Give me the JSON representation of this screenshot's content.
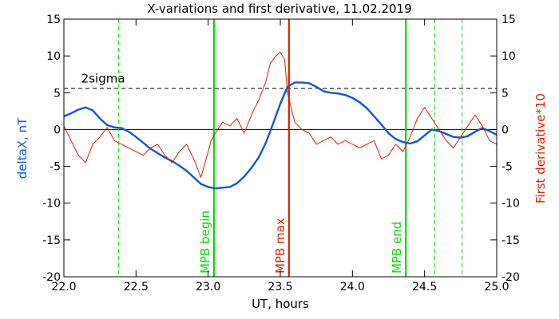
{
  "chart_data": {
    "type": "line",
    "title": "X-variations and first derivative, 11.02.2019",
    "xlabel": "UT, hours",
    "ylabel_left": "deltaX, nT",
    "ylabel_right": "First derivative*10",
    "xlim": [
      22.0,
      25.0
    ],
    "ylim": [
      -20,
      15
    ],
    "x_ticks": [
      "22.0",
      "22.5",
      "23.0",
      "23.5",
      "24.0",
      "24.5",
      "25.0"
    ],
    "y_ticks": [
      "15",
      "10",
      "5",
      "0",
      "-5",
      "-10",
      "-15",
      "-20"
    ],
    "grid": false,
    "zero_line": 0,
    "sigma": {
      "label": "2sigma",
      "value": 5.6
    },
    "events": [
      {
        "label": "MPB begin",
        "x": 23.04,
        "color": "#00dd00"
      },
      {
        "label": "MPB max",
        "x": 23.56,
        "color": "#dd2200"
      },
      {
        "label": "MPB end",
        "x": 24.37,
        "color": "#00dd00"
      }
    ],
    "dashed_markers": [
      {
        "x": 22.38,
        "color": "#00dd00"
      },
      {
        "x": 24.57,
        "color": "#00dd00"
      },
      {
        "x": 24.76,
        "color": "#00dd00"
      }
    ],
    "series": [
      {
        "color": "#1155dd",
        "x": [
          22.0,
          22.05,
          22.1,
          22.15,
          22.2,
          22.25,
          22.3,
          22.35,
          22.4,
          22.45,
          22.5,
          22.55,
          22.6,
          22.65,
          22.7,
          22.75,
          22.8,
          22.85,
          22.9,
          22.95,
          23.0,
          23.05,
          23.1,
          23.15,
          23.2,
          23.25,
          23.3,
          23.35,
          23.4,
          23.45,
          23.5,
          23.55,
          23.6,
          23.65,
          23.7,
          23.75,
          23.8,
          23.85,
          23.9,
          23.95,
          24.0,
          24.05,
          24.1,
          24.15,
          24.2,
          24.25,
          24.3,
          24.35,
          24.4,
          24.45,
          24.5,
          24.55,
          24.6,
          24.65,
          24.7,
          24.75,
          24.8,
          24.85,
          24.9,
          24.95,
          25.0
        ],
        "y": [
          1.8,
          2.2,
          2.7,
          3.0,
          2.6,
          1.5,
          0.6,
          0.3,
          0.2,
          -0.3,
          -1.0,
          -1.8,
          -2.6,
          -3.2,
          -3.8,
          -4.3,
          -4.9,
          -5.6,
          -6.5,
          -7.4,
          -7.8,
          -8.0,
          -7.9,
          -7.8,
          -7.3,
          -6.4,
          -5.2,
          -3.8,
          -1.8,
          0.8,
          3.5,
          5.8,
          6.4,
          6.4,
          6.3,
          5.8,
          5.2,
          5.0,
          4.9,
          4.7,
          4.3,
          3.7,
          2.9,
          1.8,
          0.7,
          -0.5,
          -1.3,
          -1.7,
          -1.9,
          -1.6,
          -0.8,
          0.0,
          -0.2,
          -0.6,
          -1.0,
          -1.1,
          -0.9,
          -0.3,
          0.2,
          -0.2,
          -0.7
        ]
      },
      {
        "color": "#dd2200",
        "x": [
          22.0,
          22.05,
          22.1,
          22.15,
          22.2,
          22.25,
          22.3,
          22.35,
          22.4,
          22.45,
          22.5,
          22.55,
          22.6,
          22.65,
          22.7,
          22.75,
          22.8,
          22.85,
          22.9,
          22.95,
          23.0,
          23.02,
          23.05,
          23.1,
          23.15,
          23.2,
          23.25,
          23.3,
          23.35,
          23.4,
          23.43,
          23.47,
          23.5,
          23.53,
          23.55,
          23.6,
          23.65,
          23.7,
          23.75,
          23.8,
          23.85,
          23.9,
          23.95,
          24.0,
          24.05,
          24.1,
          24.15,
          24.2,
          24.25,
          24.3,
          24.35,
          24.4,
          24.45,
          24.5,
          24.55,
          24.6,
          24.65,
          24.7,
          24.75,
          24.8,
          24.85,
          24.9,
          24.95,
          25.0
        ],
        "y": [
          0.5,
          -1.5,
          -3.5,
          -4.5,
          -2.0,
          -1.0,
          0.3,
          -1.5,
          -2.0,
          -2.5,
          -3.0,
          -3.5,
          -2.5,
          -2.0,
          -3.5,
          -4.5,
          -3.0,
          -2.0,
          -4.0,
          -6.5,
          -3.0,
          -1.5,
          -0.5,
          1.0,
          0.5,
          1.5,
          -0.5,
          2.0,
          4.0,
          6.5,
          9.0,
          10.0,
          10.5,
          9.5,
          5.0,
          1.0,
          0.0,
          -0.5,
          -2.0,
          -1.5,
          -1.0,
          -2.0,
          -1.5,
          -2.0,
          -2.5,
          -2.0,
          -1.5,
          -4.0,
          -3.5,
          -2.0,
          -3.0,
          -1.0,
          1.5,
          3.0,
          1.5,
          0.0,
          -1.5,
          -2.5,
          -1.0,
          0.5,
          2.0,
          0.5,
          -1.5,
          -2.0
        ]
      }
    ]
  }
}
